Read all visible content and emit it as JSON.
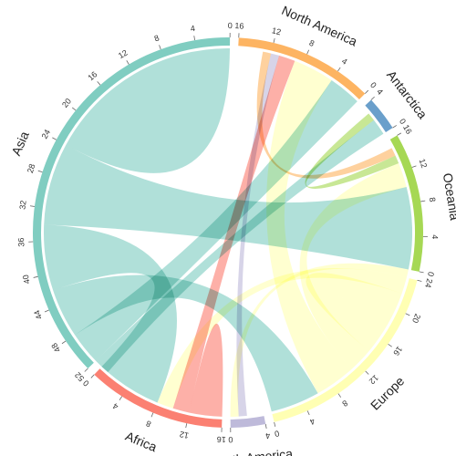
{
  "chart_data": {
    "type": "chord",
    "groups": [
      {
        "name": "Asia",
        "size": 52,
        "color": "#80CDC1",
        "ticks": [
          0,
          4,
          8,
          12,
          16,
          20,
          24,
          28,
          32,
          36,
          40,
          44,
          48,
          52
        ]
      },
      {
        "name": "North America",
        "size": 16,
        "color": "#FDB462",
        "ticks": [
          0,
          4,
          8,
          12,
          16
        ]
      },
      {
        "name": "Antarctica",
        "size": 4,
        "color": "#6A9FCB",
        "ticks": [
          0,
          4
        ]
      },
      {
        "name": "Oceania",
        "size": 16,
        "color": "#A6D854",
        "ticks": [
          0,
          4,
          8,
          12,
          16
        ]
      },
      {
        "name": "Europe",
        "size": 24,
        "color": "#FFFFB3",
        "ticks": [
          0,
          4,
          8,
          12,
          16,
          20,
          24
        ]
      },
      {
        "name": "South America",
        "size": 4,
        "color": "#BEBADA",
        "ticks": [
          0,
          4
        ]
      },
      {
        "name": "Africa",
        "size": 16,
        "color": "#FB8072",
        "ticks": [
          0,
          4,
          8,
          12,
          16
        ]
      }
    ],
    "links": [
      {
        "source": "Asia",
        "target": "Asia",
        "value": 12
      },
      {
        "source": "Asia",
        "target": "Oceania",
        "value": 10
      },
      {
        "source": "Asia",
        "target": "Africa",
        "value": 8
      },
      {
        "source": "Asia",
        "target": "Europe",
        "value": 6
      },
      {
        "source": "Asia",
        "target": "North America",
        "value": 4
      },
      {
        "source": "Asia",
        "target": "Antarctica",
        "value": 2
      },
      {
        "source": "Europe",
        "target": "North America",
        "value": 5
      },
      {
        "source": "Europe",
        "target": "Oceania",
        "value": 3
      },
      {
        "source": "Europe",
        "target": "Europe",
        "value": 4
      },
      {
        "source": "Europe",
        "target": "Africa",
        "value": 2
      },
      {
        "source": "Europe",
        "target": "South America",
        "value": 1
      },
      {
        "source": "Africa",
        "target": "North America",
        "value": 2
      },
      {
        "source": "Africa",
        "target": "Africa",
        "value": 2
      },
      {
        "source": "South America",
        "target": "North America",
        "value": 1
      },
      {
        "source": "Oceania",
        "target": "Antarctica",
        "value": 1
      },
      {
        "source": "North America",
        "target": "Oceania",
        "value": 1
      }
    ]
  }
}
